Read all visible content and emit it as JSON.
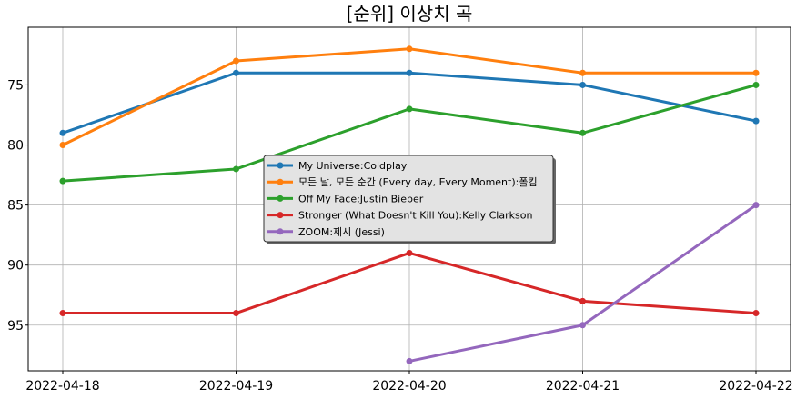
{
  "chart_data": {
    "type": "line",
    "title": "[순위] 이상치 곡",
    "xlabel": "",
    "ylabel": "",
    "x": [
      "2022-04-18",
      "2022-04-19",
      "2022-04-20",
      "2022-04-21",
      "2022-04-22"
    ],
    "y_inverted": true,
    "ylim": [
      98.8,
      70.2
    ],
    "yticks": [
      75,
      80,
      85,
      90,
      95
    ],
    "grid": true,
    "legend_position": "center",
    "series": [
      {
        "name": "My Universe:Coldplay",
        "color": "#1f77b4",
        "values": [
          79,
          74,
          74,
          75,
          78
        ]
      },
      {
        "name": "모든 날, 모든 순간 (Every day, Every Moment):폴킴",
        "color": "#ff7f0e",
        "values": [
          80,
          73,
          72,
          74,
          74
        ]
      },
      {
        "name": "Off My Face:Justin Bieber",
        "color": "#2ca02c",
        "values": [
          83,
          82,
          77,
          79,
          75
        ]
      },
      {
        "name": "Stronger (What Doesn't Kill You):Kelly Clarkson",
        "color": "#d62728",
        "values": [
          94,
          94,
          89,
          93,
          94
        ]
      },
      {
        "name": "ZOOM:제시 (Jessi)",
        "color": "#9467bd",
        "values": [
          null,
          null,
          98,
          95,
          85
        ]
      }
    ]
  }
}
